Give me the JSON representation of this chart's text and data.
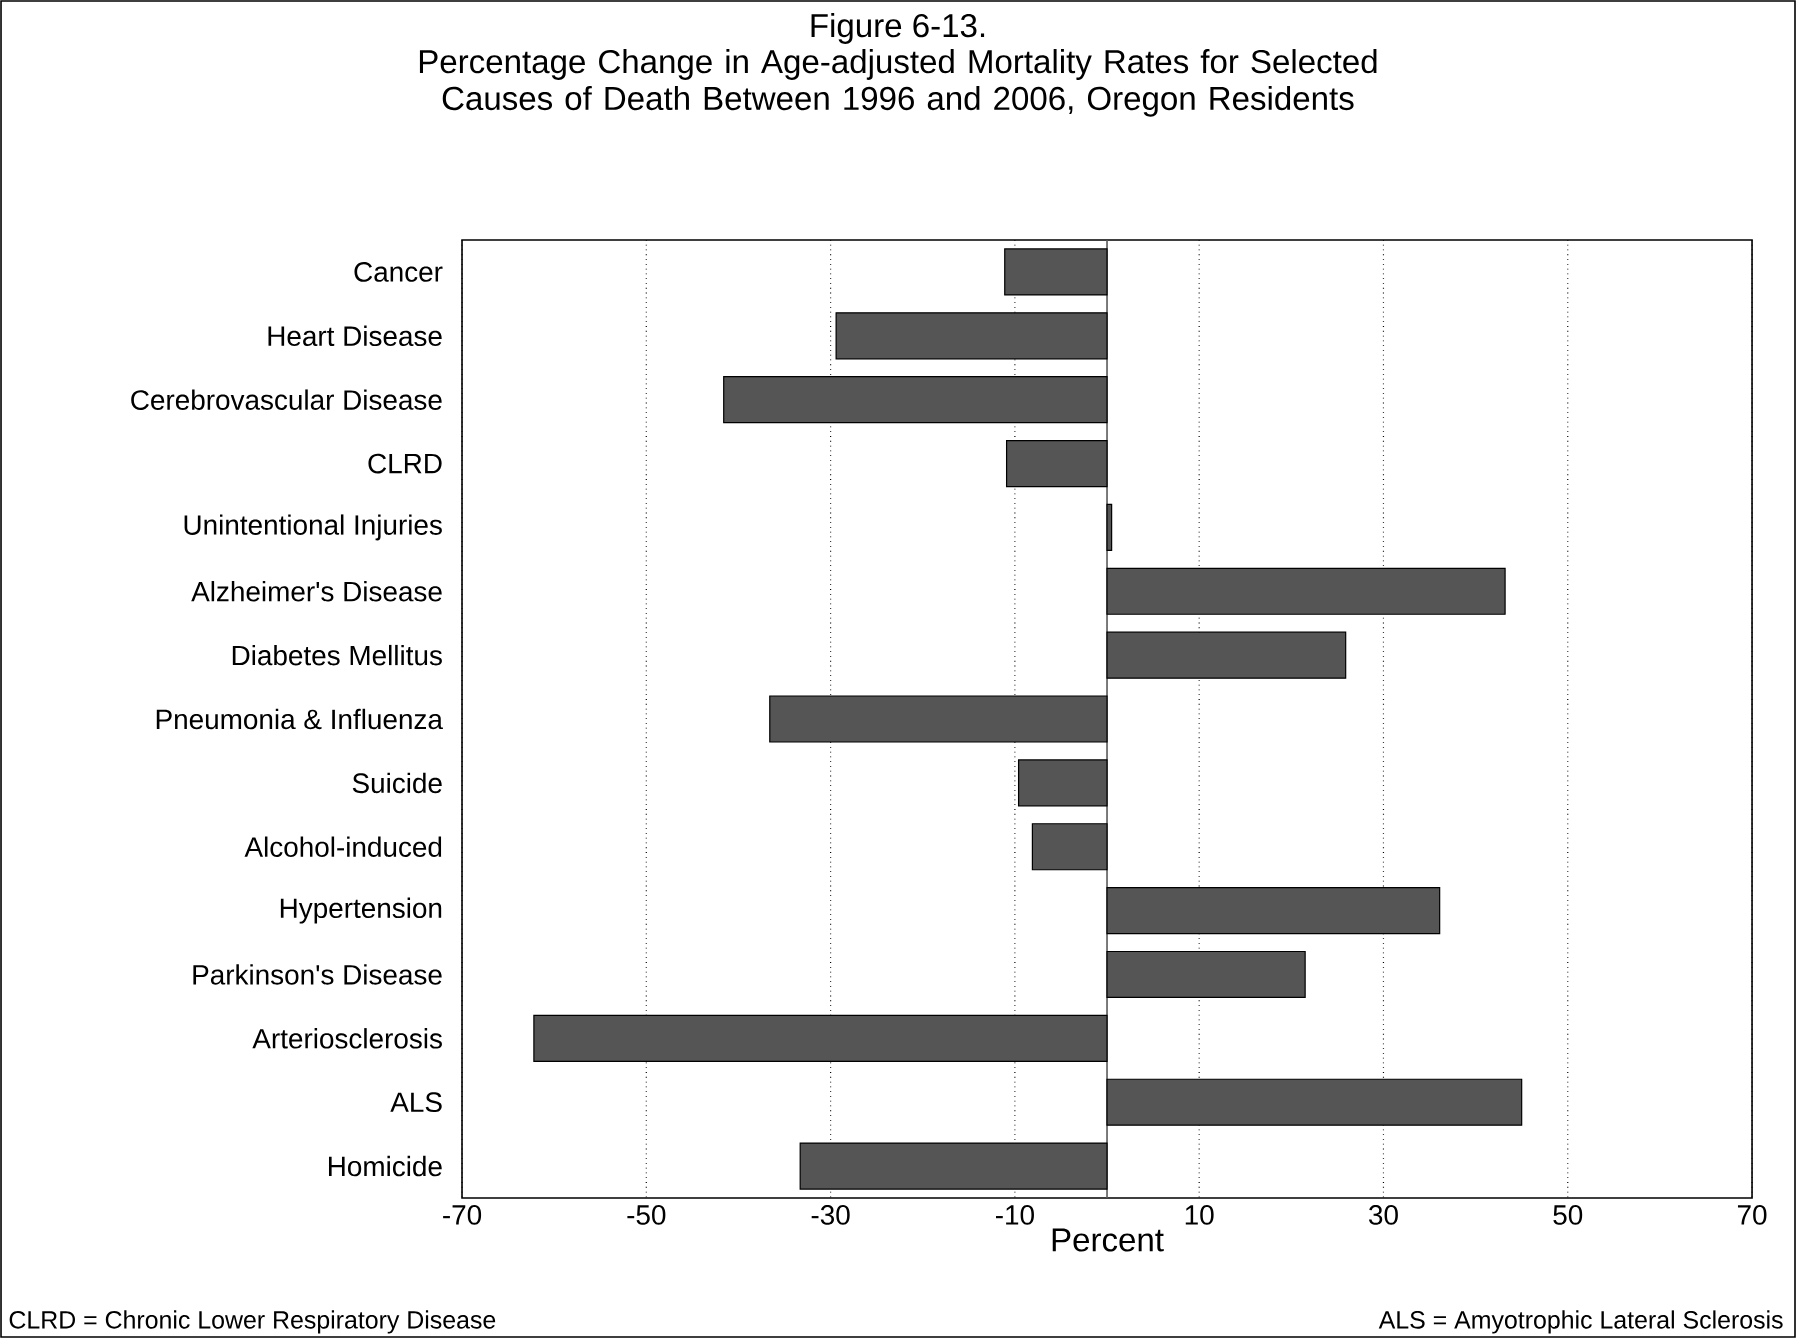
{
  "chart_data": {
    "type": "bar",
    "orientation": "horizontal",
    "title": "Figure 6-13.",
    "subtitle": "Percentage Change in Age-adjusted Mortality Rates for Selected Causes of Death Between 1996 and 2006, Oregon Residents",
    "xlabel": "Percent",
    "categories": [
      "Cancer",
      "Heart Disease",
      "Cerebrovascular Disease",
      "CLRD",
      "Unintentional Injuries",
      "Alzheimer's Disease",
      "Diabetes Mellitus",
      "Pneumonia & Influenza",
      "Suicide",
      "Alcohol-induced",
      "Hypertension",
      "Parkinson's Disease",
      "Arteriosclerosis",
      "ALS",
      "Homicide"
    ],
    "values": [
      -11.1,
      -29.4,
      -41.6,
      -10.9,
      0.5,
      43.2,
      25.9,
      -36.6,
      -9.6,
      -8.1,
      36.1,
      21.5,
      -62.2,
      45.0,
      -33.3
    ],
    "color": "#555555",
    "xlim": [
      -70,
      70
    ],
    "xticks": [
      -70,
      -50,
      -30,
      -10,
      10,
      30,
      50,
      70
    ],
    "grid": "x",
    "annotations": [
      "CLRD = Chronic Lower Respiratory Disease",
      "ALS = Amyotrophic Lateral Sclerosis"
    ]
  }
}
